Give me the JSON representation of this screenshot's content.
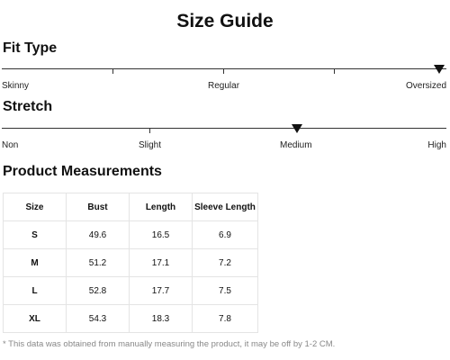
{
  "title": "Size Guide",
  "fit_type": {
    "heading": "Fit Type",
    "labels": [
      "Skinny",
      "Regular",
      "Oversized"
    ],
    "selected": "Oversized"
  },
  "stretch": {
    "heading": "Stretch",
    "labels": [
      "Non",
      "Slight",
      "Medium",
      "High"
    ],
    "selected": "Medium"
  },
  "measurements": {
    "heading": "Product Measurements",
    "columns": [
      "Size",
      "Bust",
      "Length",
      "Sleeve Length"
    ],
    "rows": [
      [
        "S",
        "49.6",
        "16.5",
        "6.9"
      ],
      [
        "M",
        "51.2",
        "17.1",
        "7.2"
      ],
      [
        "L",
        "52.8",
        "17.7",
        "7.5"
      ],
      [
        "XL",
        "54.3",
        "18.3",
        "7.8"
      ]
    ]
  },
  "footnote": "* This data was obtained from manually measuring the product, it may be off by 1-2 CM.",
  "colors": {
    "text": "#111111",
    "line": "#333333",
    "border": "#e4e4e4",
    "footnote": "#888888"
  }
}
